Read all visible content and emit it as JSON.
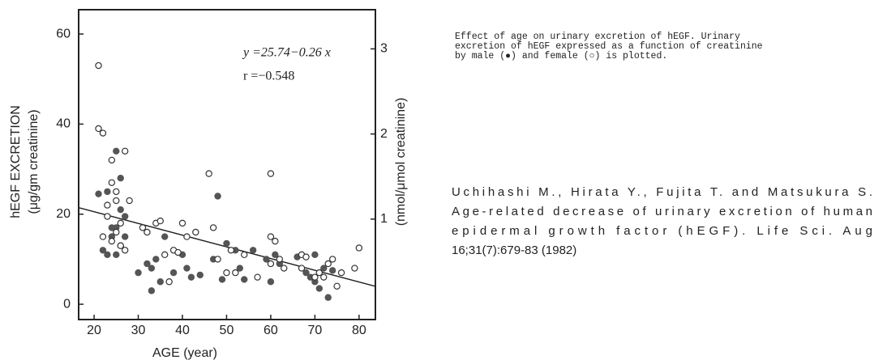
{
  "chart_data": {
    "type": "scatter",
    "xlabel": "AGE (year)",
    "ylabel": [
      "hEGF EXCRETION",
      "(μg/gm creatinine)"
    ],
    "y2label": "(nmol/μmol creatinine)",
    "annotations": [
      "y =25.74−0.26 x",
      "r =−0.548"
    ],
    "fit": {
      "intercept": 25.74,
      "slope": -0.26,
      "color": "#222222"
    },
    "xlim": [
      16.5,
      83.7
    ],
    "xticks": [
      20,
      30,
      40,
      50,
      60,
      70,
      80
    ],
    "ylim": [
      -3.4,
      65.4
    ],
    "yticks": [
      0,
      20,
      40,
      60
    ],
    "y2lim": [
      -0.18,
      3.46
    ],
    "y2ticks": [
      1,
      2,
      3
    ],
    "series": [
      {
        "name": "male",
        "marker": "filled",
        "color": "#555555",
        "x": [
          21,
          22,
          23,
          23,
          24,
          24,
          25,
          25,
          25,
          26,
          26,
          26,
          27,
          27,
          30,
          32,
          33,
          33,
          34,
          35,
          36,
          38,
          40,
          41,
          42,
          44,
          47,
          48,
          49,
          50,
          52,
          53,
          54,
          56,
          59,
          60,
          61,
          62,
          66,
          68,
          69,
          70,
          70,
          71,
          72,
          73,
          74
        ],
        "values": [
          24.5,
          12,
          25,
          11,
          15,
          17,
          34,
          17,
          11,
          28,
          21,
          13,
          19.5,
          15,
          7,
          9,
          3,
          8,
          10,
          5,
          15,
          7,
          11,
          8,
          6,
          6.5,
          10,
          24,
          5.5,
          13.5,
          12,
          8,
          5.5,
          12,
          10,
          5,
          11,
          9,
          10.5,
          7,
          6,
          5,
          11,
          3.5,
          8,
          1.5,
          7.5
        ]
      },
      {
        "name": "female",
        "marker": "open",
        "color": "#333333",
        "x": [
          21,
          21,
          22,
          22,
          23,
          23,
          24,
          24,
          24,
          25,
          25,
          25,
          26,
          26,
          27,
          27,
          28,
          31,
          32,
          34,
          35,
          36,
          37,
          38,
          39,
          40,
          41,
          43,
          46,
          47,
          48,
          50,
          51,
          52,
          54,
          57,
          60,
          60,
          60,
          61,
          62,
          63,
          67,
          67,
          68,
          70,
          71,
          72,
          73,
          74,
          75,
          76,
          79,
          80
        ],
        "values": [
          53,
          39,
          38,
          15,
          22,
          19.5,
          32,
          27,
          14,
          25,
          23,
          16,
          18,
          13,
          34,
          12,
          23,
          17,
          16,
          18,
          18.5,
          11,
          5,
          12,
          11.5,
          18,
          15,
          16,
          29,
          17,
          10,
          7,
          12,
          7,
          11,
          6,
          29,
          15,
          9,
          14,
          10,
          8,
          8,
          11,
          10.5,
          6,
          7,
          6,
          9,
          10,
          4,
          7,
          8,
          12.5
        ]
      }
    ]
  },
  "caption": [
    "Effect of age on urinary excretion of hEGF.  Urinary",
    "excretion of hEGF expressed as a function of creatinine",
    "by male (●) and female (○) is plotted."
  ],
  "citation": [
    "Uchihashi M., Hirata Y., Fujita T. and Matsukura S.",
    "Age-related decrease of urinary excretion of human",
    "epidermal growth factor (hEGF). Life Sci. Aug",
    "16;31(7):679-83 (1982)"
  ]
}
